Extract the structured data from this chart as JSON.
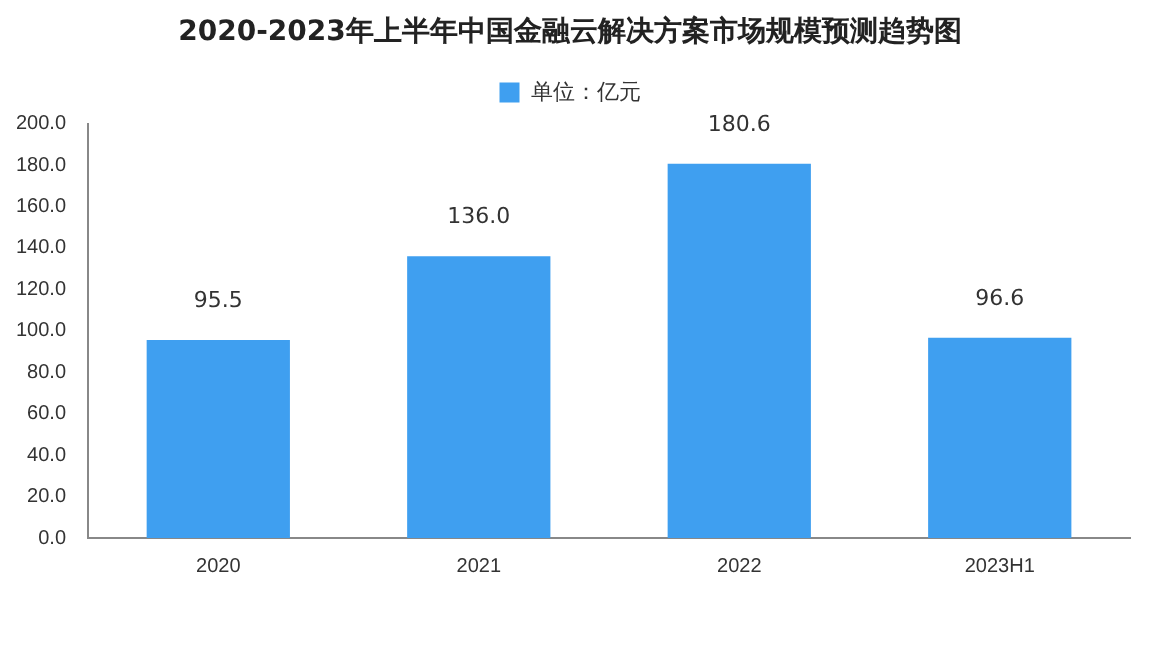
{
  "chart_data": {
    "type": "bar",
    "title": "2020-2023年上半年中国金融云解决方案市场规模预测趋势图",
    "categories": [
      "2020",
      "2021",
      "2022",
      "2023H1"
    ],
    "series": [
      {
        "name": "单位：亿元",
        "color": "#3f9ff0",
        "values": [
          95.5,
          136.0,
          180.6,
          96.6
        ],
        "value_labels": [
          "95.5",
          "136.0",
          "180.6",
          "96.6"
        ]
      }
    ],
    "ylim": [
      0,
      200
    ],
    "yticks": [
      {
        "value": 0,
        "label": "0.0"
      },
      {
        "value": 20,
        "label": "20.0"
      },
      {
        "value": 40,
        "label": "40.0"
      },
      {
        "value": 60,
        "label": "60.0"
      },
      {
        "value": 80,
        "label": "80.0"
      },
      {
        "value": 100,
        "label": "100.0"
      },
      {
        "value": 120,
        "label": "120.0"
      },
      {
        "value": 140,
        "label": "140.0"
      },
      {
        "value": 160,
        "label": "160.0"
      },
      {
        "value": 180,
        "label": "180.0"
      },
      {
        "value": 200,
        "label": "200.0"
      }
    ],
    "grid": false,
    "legend": "top"
  }
}
